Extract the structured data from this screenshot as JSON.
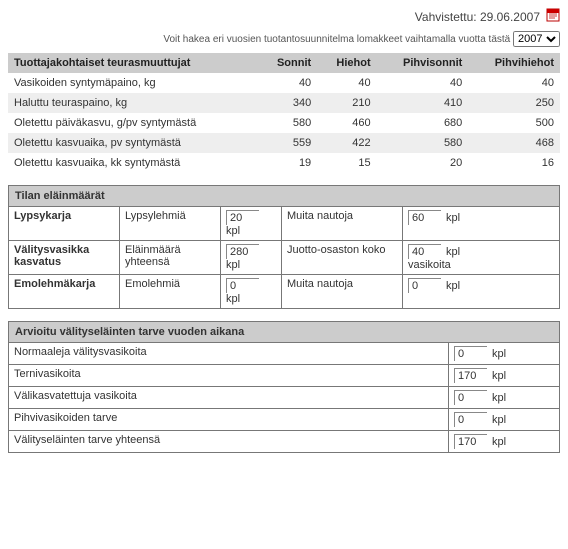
{
  "header": {
    "confirmed_label": "Vahvistettu:",
    "confirmed_date": "29.06.2007",
    "hint_text": "Voit hakea eri vuosien tuotantosuunnitelma lomakkeet vaihtamalla vuotta tästä",
    "year_selected": "2007",
    "year_options": [
      "2007"
    ]
  },
  "table1": {
    "columns": [
      "Tuottajakohtaiset teurasmuuttujat",
      "Sonnit",
      "Hiehot",
      "Pihvisonnit",
      "Pihvihiehot"
    ],
    "rows": [
      [
        "Vasikoiden syntymäpaino, kg",
        "40",
        "40",
        "40",
        "40"
      ],
      [
        "Haluttu teuraspaino, kg",
        "340",
        "210",
        "410",
        "250"
      ],
      [
        "Oletettu päiväkasvu, g/pv syntymästä",
        "580",
        "460",
        "680",
        "500"
      ],
      [
        "Oletettu kasvuaika, pv syntymästä",
        "559",
        "422",
        "580",
        "468"
      ],
      [
        "Oletettu kasvuaika, kk syntymästä",
        "19",
        "15",
        "20",
        "16"
      ]
    ]
  },
  "table2": {
    "title": "Tilan eläinmäärät",
    "rows": [
      {
        "label": "Lypsykarja",
        "c1_label": "Lypsylehmiä",
        "c1_val": "20",
        "c1_unit": "kpl",
        "c2_label": "Muita nautoja",
        "c2_val": "60",
        "c2_unit": "kpl"
      },
      {
        "label": "Välitysvasikka kasvatus",
        "c1_label": "Eläinmäärä yhteensä",
        "c1_val": "280",
        "c1_unit": "kpl",
        "c2_label": "Juotto-osaston koko",
        "c2_val": "40",
        "c2_unit": "kpl vasikoita"
      },
      {
        "label": "Emolehmäkarja",
        "c1_label": "Emolehmiä",
        "c1_val": "0",
        "c1_unit": "kpl",
        "c2_label": "Muita nautoja",
        "c2_val": "0",
        "c2_unit": "kpl"
      }
    ]
  },
  "table3": {
    "title": "Arvioitu välityseläinten tarve vuoden aikana",
    "rows": [
      {
        "label": "Normaaleja välitysvasikoita",
        "val": "0",
        "unit": "kpl"
      },
      {
        "label": "Ternivasikoita",
        "val": "170",
        "unit": "kpl"
      },
      {
        "label": "Välikasvatettuja vasikoita",
        "val": "0",
        "unit": "kpl"
      },
      {
        "label": "Pihvivasikoiden tarve",
        "val": "0",
        "unit": "kpl"
      },
      {
        "label": "Välityseläinten tarve yhteensä",
        "val": "170",
        "unit": "kpl"
      }
    ]
  }
}
